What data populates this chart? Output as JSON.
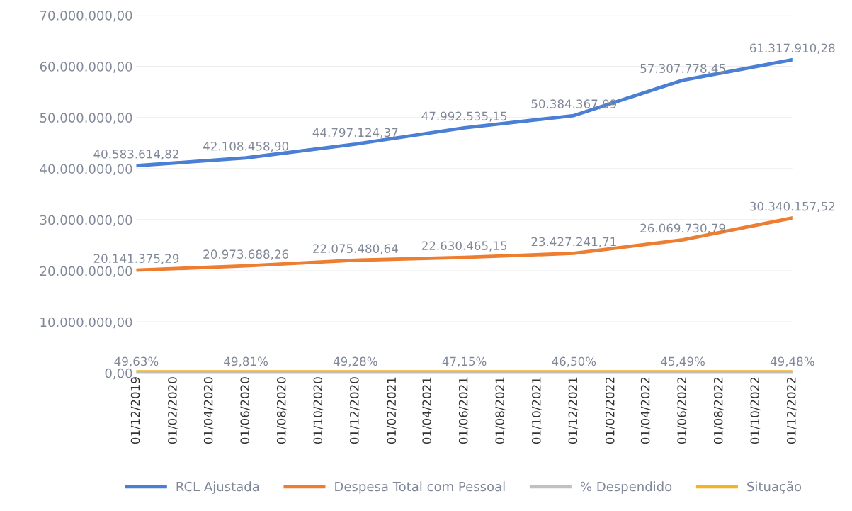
{
  "chart_data": {
    "type": "line",
    "x": [
      "2019-12-01",
      "2020-06-01",
      "2020-12-01",
      "2021-06-01",
      "2021-12-01",
      "2022-06-01",
      "2022-12-01"
    ],
    "series": [
      {
        "name": "RCL Ajustada",
        "color": "#4a7fd4",
        "values": [
          40583614.82,
          42108458.9,
          44797124.37,
          47992535.15,
          50384367.09,
          57307778.45,
          61317910.28
        ],
        "value_labels": [
          "40.583.614,82",
          "42.108.458,90",
          "44.797.124,37",
          "47.992.535,15",
          "50.384.367,09",
          "57.307.778,45",
          "61.317.910,28"
        ]
      },
      {
        "name": "Despesa Total com Pessoal",
        "color": "#ed7d31",
        "values": [
          20141375.29,
          20973688.26,
          22075480.64,
          22630465.15,
          23427241.71,
          26069730.79,
          30340157.52
        ],
        "value_labels": [
          "20.141.375,29",
          "20.973.688,26",
          "22.075.480,64",
          "22.630.465,15",
          "23.427.241,71",
          "26.069.730,79",
          "30.340.157,52"
        ]
      },
      {
        "name": "% Despendido",
        "color": "#c0c0c0",
        "values": [
          0.4963,
          0.4981,
          0.4928,
          0.4715,
          0.465,
          0.4549,
          0.4948
        ],
        "value_labels": [
          "49,63%",
          "49,81%",
          "49,28%",
          "47,15%",
          "46,50%",
          "45,49%",
          "49,48%"
        ]
      },
      {
        "name": "Situação",
        "color": "#f5b324",
        "values": [
          0,
          0,
          0,
          0,
          0,
          0,
          0
        ]
      }
    ],
    "ylim": [
      0,
      70000000
    ],
    "yticks": [
      {
        "value": 0,
        "label": "0,00"
      },
      {
        "value": 10000000,
        "label": "10.000.000,00"
      },
      {
        "value": 20000000,
        "label": "20.000.000,00"
      },
      {
        "value": 30000000,
        "label": "30.000.000,00"
      },
      {
        "value": 40000000,
        "label": "40.000.000,00"
      },
      {
        "value": 50000000,
        "label": "50.000.000,00"
      },
      {
        "value": 60000000,
        "label": "60.000.000,00"
      },
      {
        "value": 70000000,
        "label": "70.000.000,00"
      }
    ],
    "xlim": [
      "2019-12-01",
      "2022-12-01"
    ],
    "xticks": [
      {
        "value": "2019-12-01",
        "label": "01/12/2019"
      },
      {
        "value": "2020-02-01",
        "label": "01/02/2020"
      },
      {
        "value": "2020-04-01",
        "label": "01/04/2020"
      },
      {
        "value": "2020-06-01",
        "label": "01/06/2020"
      },
      {
        "value": "2020-08-01",
        "label": "01/08/2020"
      },
      {
        "value": "2020-10-01",
        "label": "01/10/2020"
      },
      {
        "value": "2020-12-01",
        "label": "01/12/2020"
      },
      {
        "value": "2021-02-01",
        "label": "01/02/2021"
      },
      {
        "value": "2021-04-01",
        "label": "01/04/2021"
      },
      {
        "value": "2021-06-01",
        "label": "01/06/2021"
      },
      {
        "value": "2021-08-01",
        "label": "01/08/2021"
      },
      {
        "value": "2021-10-01",
        "label": "01/10/2021"
      },
      {
        "value": "2021-12-01",
        "label": "01/12/2021"
      },
      {
        "value": "2022-02-01",
        "label": "01/02/2022"
      },
      {
        "value": "2022-04-01",
        "label": "01/04/2022"
      },
      {
        "value": "2022-06-01",
        "label": "01/06/2022"
      },
      {
        "value": "2022-08-01",
        "label": "01/08/2022"
      },
      {
        "value": "2022-10-01",
        "label": "01/10/2022"
      },
      {
        "value": "2022-12-01",
        "label": "01/12/2022"
      }
    ],
    "grid": "y",
    "legend": "bottom",
    "marker": "none",
    "line_style": "solid"
  }
}
